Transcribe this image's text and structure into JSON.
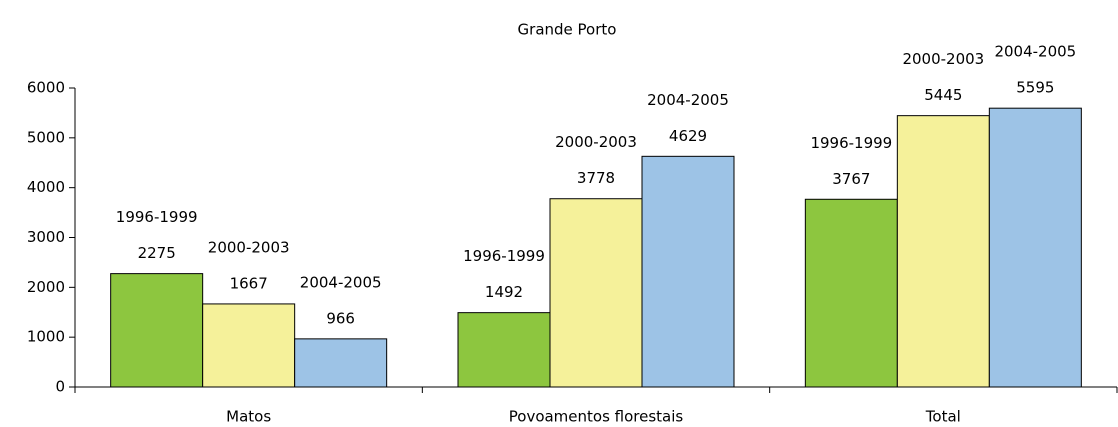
{
  "chart_data": {
    "type": "bar",
    "title": "Grande Porto",
    "categories": [
      "Matos",
      "Povoamentos florestais",
      "Total"
    ],
    "series": [
      {
        "name": "1996-1999",
        "color": "#8dc63f",
        "values": [
          2275,
          1492,
          3767
        ]
      },
      {
        "name": "2000-2003",
        "color": "#f5f19a",
        "values": [
          1667,
          3778,
          5445
        ]
      },
      {
        "name": "2004-2005",
        "color": "#9dc3e6",
        "values": [
          966,
          4629,
          5595
        ]
      }
    ],
    "ylim": [
      0,
      6000
    ],
    "yticks": [
      0,
      1000,
      2000,
      3000,
      4000,
      5000,
      6000
    ]
  }
}
